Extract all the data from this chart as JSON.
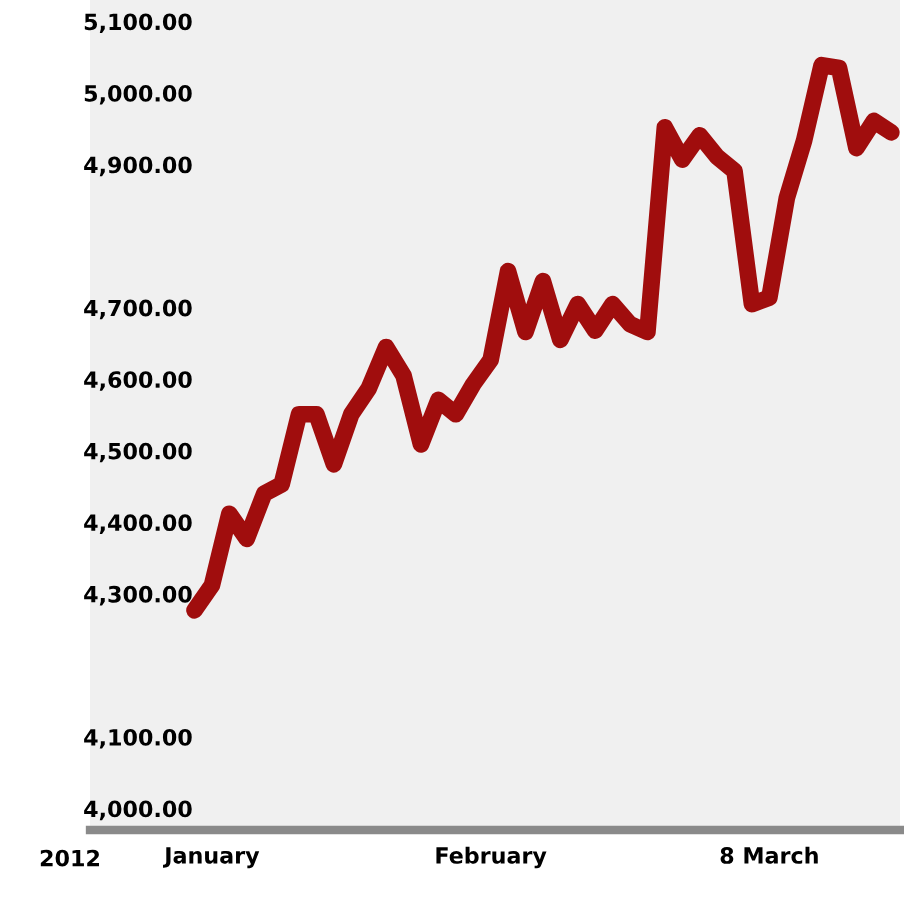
{
  "chart_data": {
    "type": "line",
    "categories": [
      null,
      "January",
      null,
      null,
      null,
      null,
      null,
      null,
      null,
      null,
      null,
      null,
      null,
      null,
      null,
      null,
      null,
      "February",
      null,
      null,
      null,
      null,
      null,
      null,
      null,
      null,
      null,
      null,
      null,
      null,
      null,
      null,
      null,
      "8 March",
      null,
      null,
      null,
      null,
      null,
      null,
      null
    ],
    "series": [
      {
        "color": "#a00d0d",
        "values": [
          4277,
          4312,
          4412,
          4377,
          4440,
          4453,
          4551,
          4551,
          4481,
          4551,
          4587,
          4645,
          4605,
          4509,
          4571,
          4551,
          4593,
          4627,
          4751,
          4666,
          4737,
          4655,
          4705,
          4668,
          4705,
          4677,
          4666,
          4952,
          4907,
          4941,
          4911,
          4891,
          4705,
          4714,
          4853,
          4934,
          5039,
          5035,
          4923,
          4961,
          4945
        ]
      }
    ],
    "annotations": [
      "2012"
    ],
    "ylim": [
      3970,
      5130
    ],
    "yticks": [
      {
        "value": 4000,
        "label": "4,000.00"
      },
      {
        "value": 4100,
        "label": "4,100.00"
      },
      {
        "value": 4300,
        "label": "4,300.00"
      },
      {
        "value": 4400,
        "label": "4,400.00"
      },
      {
        "value": 4500,
        "label": "4,500.00"
      },
      {
        "value": 4600,
        "label": "4,600.00"
      },
      {
        "value": 4700,
        "label": "4,700.00"
      },
      {
        "value": 4900,
        "label": "4,900.00"
      },
      {
        "value": 5000,
        "label": "5,000.00"
      },
      {
        "value": 5100,
        "label": "5,100.00"
      }
    ],
    "grid": false,
    "legend": false,
    "marker": "none",
    "line_style": "solid"
  }
}
